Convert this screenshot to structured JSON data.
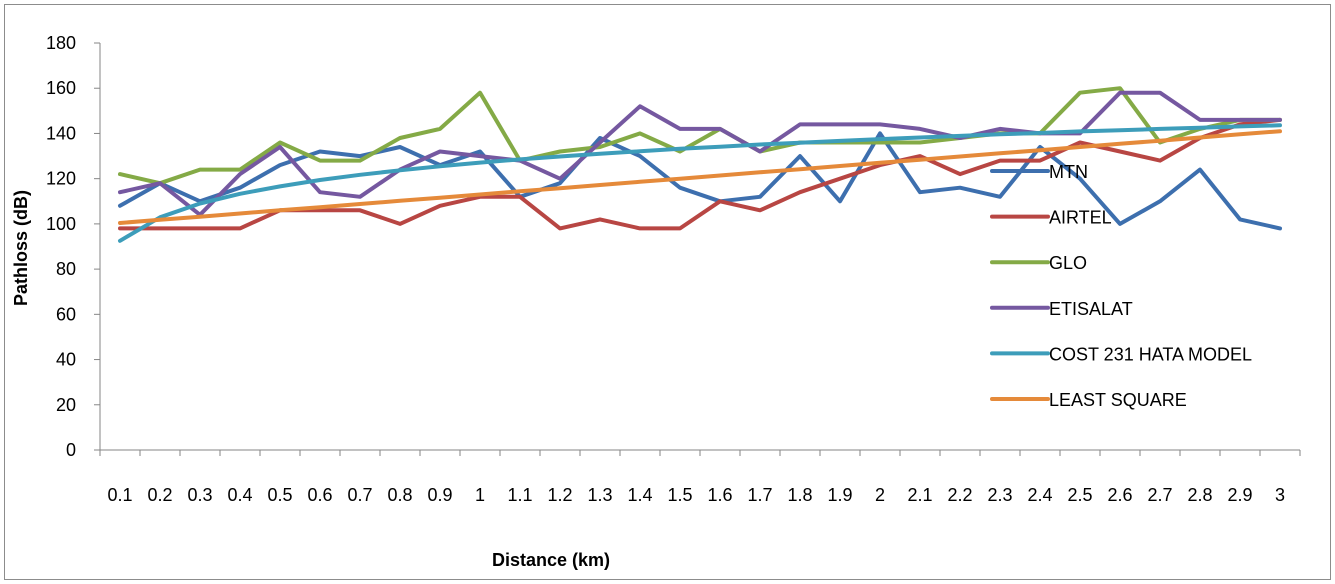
{
  "chart_data": {
    "type": "line",
    "xlabel": "Distance (km)",
    "ylabel": "Pathloss (dB)",
    "ylim": [
      0,
      180
    ],
    "yticks": [
      0,
      20,
      40,
      60,
      80,
      100,
      120,
      140,
      160,
      180
    ],
    "categories": [
      "0.1",
      "0.2",
      "0.3",
      "0.4",
      "0.5",
      "0.6",
      "0.7",
      "0.8",
      "0.9",
      "1",
      "1.1",
      "1.2",
      "1.3",
      "1.4",
      "1.5",
      "1.6",
      "1.7",
      "1.8",
      "1.9",
      "2",
      "2.1",
      "2.2",
      "2.3",
      "2.4",
      "2.5",
      "2.6",
      "2.7",
      "2.8",
      "2.9",
      "3"
    ],
    "grid": false,
    "legend_position": "right",
    "series": [
      {
        "name": "MTN",
        "color": "#3D6FAE",
        "values": [
          108,
          118,
          110,
          116,
          126,
          132,
          130,
          134,
          126,
          132,
          112,
          118,
          138,
          130,
          116,
          110,
          112,
          130,
          110,
          140,
          114,
          116,
          112,
          134,
          120,
          100,
          110,
          124,
          102,
          98
        ]
      },
      {
        "name": "AIRTEL",
        "color": "#B84643",
        "values": [
          98,
          98,
          98,
          98,
          106,
          106,
          106,
          100,
          108,
          112,
          112,
          98,
          102,
          98,
          98,
          110,
          106,
          114,
          120,
          126,
          130,
          122,
          128,
          128,
          136,
          132,
          128,
          138,
          144,
          146
        ]
      },
      {
        "name": "GLO",
        "color": "#84AA46",
        "values": [
          122,
          118,
          124,
          124,
          136,
          128,
          128,
          138,
          142,
          158,
          128,
          132,
          134,
          140,
          132,
          142,
          132,
          136,
          136,
          136,
          136,
          138,
          140,
          140,
          158,
          160,
          136,
          142,
          146,
          146
        ]
      },
      {
        "name": "ETISALAT",
        "color": "#7558A0",
        "values": [
          114,
          118,
          104,
          122,
          134,
          114,
          112,
          124,
          132,
          130,
          128,
          120,
          136,
          152,
          142,
          142,
          132,
          144,
          144,
          144,
          142,
          138,
          142,
          140,
          140,
          158,
          158,
          146,
          146,
          146
        ]
      },
      {
        "name": "COST 231 HATA MODEL",
        "color": "#3D9DBA",
        "values": [
          92.5,
          102.9,
          109.0,
          113.3,
          116.6,
          119.4,
          121.7,
          123.7,
          125.5,
          127.1,
          128.5,
          129.8,
          131.0,
          132.1,
          133.2,
          134.1,
          135.1,
          135.9,
          136.7,
          137.5,
          138.2,
          138.9,
          139.6,
          140.2,
          140.9,
          141.4,
          142.0,
          142.5,
          143.1,
          143.6
        ]
      },
      {
        "name": "LEAST SQUARE",
        "color": "#E58A3A",
        "values": [
          100.4,
          101.8,
          103.2,
          104.6,
          106.0,
          107.4,
          108.8,
          110.2,
          111.6,
          113.0,
          114.4,
          115.8,
          117.2,
          118.6,
          120.0,
          121.4,
          122.8,
          124.2,
          125.6,
          127.0,
          128.4,
          129.8,
          131.2,
          132.6,
          134.0,
          135.4,
          136.8,
          138.2,
          139.6,
          141.0
        ]
      }
    ]
  }
}
